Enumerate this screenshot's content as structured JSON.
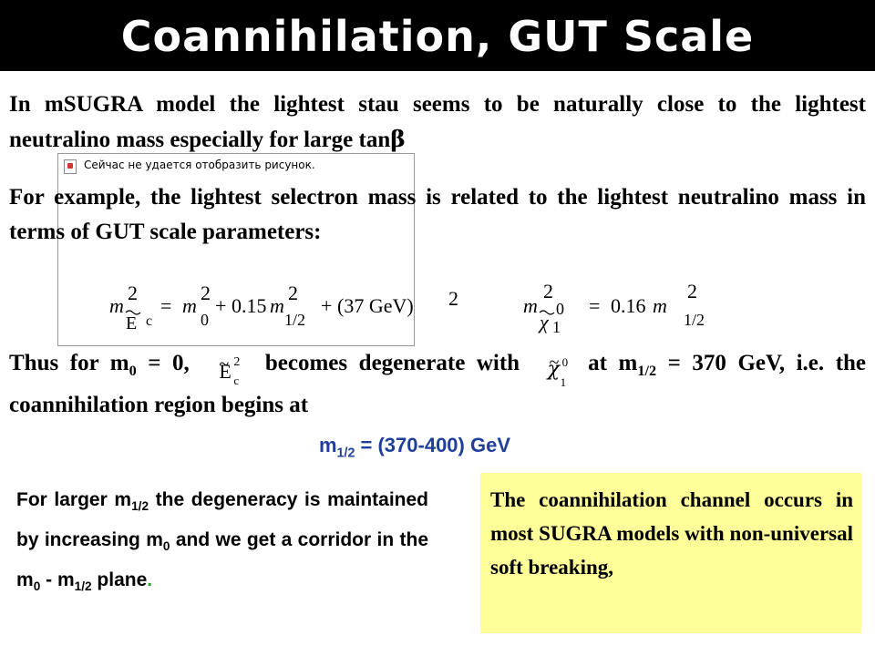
{
  "title": "Coannihilation, GUT Scale",
  "p1": {
    "text": "In mSUGRA model the lightest stau seems to be naturally close to the lightest neutralino mass especially for large tan",
    "beta": "β"
  },
  "broken_image": {
    "message": "Сейчас не удается отобразить рисунок."
  },
  "p2": {
    "text": "For example, the lightest selectron mass is related to the  lightest neutralino mass in terms of  GUT scale parameters:"
  },
  "formula1": {
    "lhs_m": "m",
    "lhs_sq": "2",
    "lhs_E": "E",
    "lhs_c": "c",
    "eq": "=",
    "m0": "m",
    "m0_sq": "2",
    "m0_sub": "0",
    "plus1": "+",
    "coef": "0.15",
    "mhalf": "m",
    "mhalf_sq": "2",
    "mhalf_sub": "1/2",
    "plus2": "+",
    "gev": "(37 GeV)",
    "gev_sq": "2"
  },
  "formula2": {
    "lhs_m": "m",
    "lhs_sq": "2",
    "chi": "χ",
    "chi_sub": "1",
    "chi_sup": "0",
    "eq": "=",
    "coef": "0.16",
    "mhalf": "m",
    "mhalf_sq": "2",
    "mhalf_sub": "1/2"
  },
  "p3": {
    "a": "Thus for m",
    "a_sub": "0",
    "b": " = 0,",
    "e_sq": "2",
    "e_sub": "c",
    "c": " becomes degenerate with ",
    "chi_sub": "1",
    "chi_sup": "0",
    "d": " at m",
    "d_sub": "1/2",
    "e": " = 370 GeV, i.e. the coannihilation region begins at"
  },
  "result": {
    "m": "m",
    "sub": "1/2",
    "rest": " = (370-400) GeV"
  },
  "p4": {
    "a": "For larger m",
    "a_sub": "1/2",
    "b": " the degeneracy is maintained by increasing m",
    "b_sub": "0",
    "c": " and we get a corridor in the m",
    "c_sub": "0",
    "d": " - m",
    "d_sub": "1/2",
    "e": " plane",
    "dot": "."
  },
  "p5": {
    "text": "The coannihilation channel occurs in most SUGRA models with non-universal soft breaking,"
  },
  "colors": {
    "title_bg": "#000000",
    "title_fg": "#ffffff",
    "result": "#1f3f9a",
    "box": "#ffff99",
    "dot": "#27a327"
  }
}
